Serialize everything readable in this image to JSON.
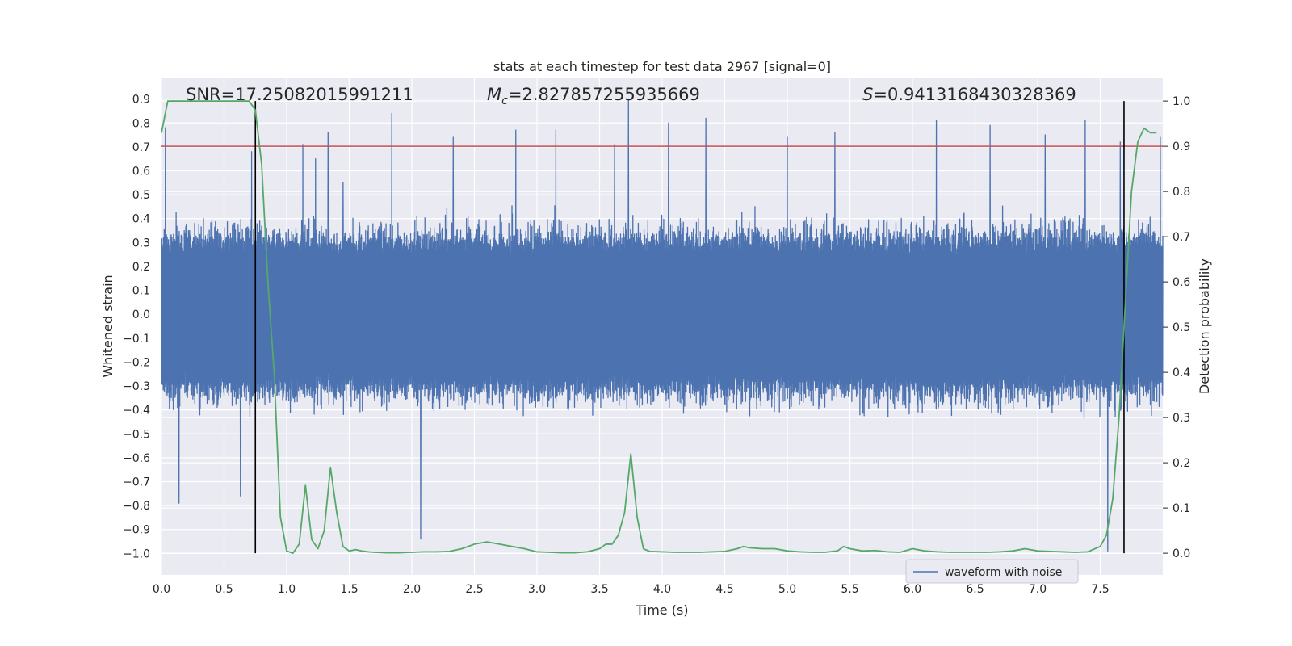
{
  "chart_data": {
    "type": "line",
    "title": "stats at each timestep for test data 2967 [signal=0]",
    "xlabel": "Time (s)",
    "ylabel": "Whitened strain",
    "ylabel_right": "Detection probability",
    "xlim": [
      0,
      8
    ],
    "ylim": [
      -1.09,
      0.99
    ],
    "ylim_right": [
      -0.048,
      1.052
    ],
    "x_ticks": [
      0.0,
      0.5,
      1.0,
      1.5,
      2.0,
      2.5,
      3.0,
      3.5,
      4.0,
      4.5,
      5.0,
      5.5,
      6.0,
      6.5,
      7.0,
      7.5
    ],
    "x_tick_labels": [
      "0.0",
      "0.5",
      "1.0",
      "1.5",
      "2.0",
      "2.5",
      "3.0",
      "3.5",
      "4.0",
      "4.5",
      "5.0",
      "5.5",
      "6.0",
      "6.5",
      "7.0",
      "7.5"
    ],
    "y_ticks": [
      0.9,
      0.8,
      0.7,
      0.6,
      0.5,
      0.4,
      0.3,
      0.2,
      0.1,
      0.0,
      -0.1,
      -0.2,
      -0.3,
      -0.4,
      -0.5,
      -0.6,
      -0.7,
      -0.8,
      -0.9,
      -1.0
    ],
    "y_tick_labels": [
      "0.9",
      "0.8",
      "0.7",
      "0.6",
      "0.5",
      "0.4",
      "0.3",
      "0.2",
      "0.1",
      "0.0",
      "−0.1",
      "−0.2",
      "−0.3",
      "−0.4",
      "−0.5",
      "−0.6",
      "−0.7",
      "−0.8",
      "−0.9",
      "−1.0"
    ],
    "y_ticks_right": [
      1.0,
      0.9,
      0.8,
      0.7,
      0.6,
      0.5,
      0.4,
      0.3,
      0.2,
      0.1,
      0.0
    ],
    "y_tick_labels_right": [
      "1.0",
      "0.9",
      "0.8",
      "0.7",
      "0.6",
      "0.5",
      "0.4",
      "0.3",
      "0.2",
      "0.1",
      "0.0"
    ],
    "annotations": {
      "snr": "SNR=17.25082015991211",
      "mc_symbol": "M",
      "mc_sub": "c",
      "mc_value": "=2.827857255935669",
      "s_symbol": "S",
      "s_value": "=0.9413168430328369"
    },
    "threshold": {
      "axis": "right",
      "value": 0.9,
      "color": "#c44e52"
    },
    "vertical_lines": [
      0.75,
      7.69
    ],
    "legend": {
      "label": "waveform with noise",
      "position": "lower-right"
    },
    "colors": {
      "waveform": "#4c72b0",
      "probability": "#55a868",
      "threshold": "#c44e52",
      "vline": "#000000",
      "axes_bg": "#eaeaf2",
      "grid": "#ffffff"
    },
    "series": [
      {
        "name": "waveform with noise",
        "axis": "left",
        "description": "dense noise band, typically between -0.5 and 0.5",
        "spikes_x": [
          0.03,
          0.14,
          0.63,
          0.72,
          1.13,
          1.23,
          1.33,
          1.45,
          1.84,
          2.07,
          2.33,
          2.83,
          3.15,
          3.62,
          3.73,
          4.05,
          4.35,
          5.0,
          5.38,
          6.19,
          6.62,
          7.06,
          7.38,
          7.56,
          7.66,
          7.98
        ],
        "spikes_y": [
          0.78,
          -0.79,
          -0.76,
          0.68,
          0.71,
          0.65,
          0.76,
          0.55,
          0.84,
          -0.94,
          0.74,
          0.77,
          0.77,
          0.71,
          0.9,
          0.8,
          0.82,
          0.74,
          0.76,
          0.81,
          0.79,
          0.75,
          0.81,
          -0.99,
          0.72,
          0.74
        ]
      },
      {
        "name": "detection probability",
        "axis": "right",
        "x": [
          0.0,
          0.05,
          0.1,
          0.2,
          0.3,
          0.4,
          0.5,
          0.6,
          0.7,
          0.75,
          0.8,
          0.85,
          0.9,
          0.95,
          1.0,
          1.05,
          1.1,
          1.15,
          1.2,
          1.25,
          1.3,
          1.35,
          1.4,
          1.45,
          1.5,
          1.55,
          1.6,
          1.65,
          1.7,
          1.8,
          1.9,
          2.0,
          2.1,
          2.2,
          2.3,
          2.4,
          2.5,
          2.6,
          2.7,
          2.8,
          2.9,
          3.0,
          3.1,
          3.2,
          3.3,
          3.4,
          3.5,
          3.55,
          3.6,
          3.65,
          3.7,
          3.75,
          3.8,
          3.85,
          3.9,
          4.0,
          4.1,
          4.2,
          4.3,
          4.4,
          4.5,
          4.6,
          4.65,
          4.7,
          4.8,
          4.9,
          5.0,
          5.1,
          5.2,
          5.3,
          5.4,
          5.45,
          5.5,
          5.6,
          5.7,
          5.8,
          5.9,
          6.0,
          6.1,
          6.2,
          6.3,
          6.4,
          6.5,
          6.6,
          6.7,
          6.8,
          6.9,
          7.0,
          7.1,
          7.2,
          7.3,
          7.4,
          7.5,
          7.55,
          7.6,
          7.65,
          7.7,
          7.75,
          7.8,
          7.85,
          7.9,
          7.95
        ],
        "values": [
          0.93,
          1.0,
          1.0,
          1.0,
          1.0,
          1.0,
          1.0,
          1.0,
          1.0,
          0.98,
          0.86,
          0.6,
          0.4,
          0.08,
          0.005,
          0.0,
          0.02,
          0.15,
          0.03,
          0.01,
          0.05,
          0.19,
          0.09,
          0.015,
          0.005,
          0.008,
          0.005,
          0.003,
          0.002,
          0.001,
          0.001,
          0.002,
          0.003,
          0.003,
          0.004,
          0.01,
          0.02,
          0.025,
          0.02,
          0.015,
          0.01,
          0.003,
          0.002,
          0.001,
          0.001,
          0.003,
          0.01,
          0.02,
          0.02,
          0.04,
          0.09,
          0.22,
          0.08,
          0.01,
          0.004,
          0.003,
          0.002,
          0.002,
          0.002,
          0.003,
          0.004,
          0.01,
          0.015,
          0.012,
          0.01,
          0.01,
          0.005,
          0.003,
          0.002,
          0.002,
          0.005,
          0.015,
          0.01,
          0.005,
          0.006,
          0.003,
          0.002,
          0.01,
          0.005,
          0.003,
          0.002,
          0.002,
          0.002,
          0.002,
          0.003,
          0.005,
          0.01,
          0.005,
          0.004,
          0.003,
          0.002,
          0.003,
          0.015,
          0.04,
          0.12,
          0.3,
          0.55,
          0.8,
          0.91,
          0.94,
          0.93,
          0.93
        ]
      }
    ]
  }
}
